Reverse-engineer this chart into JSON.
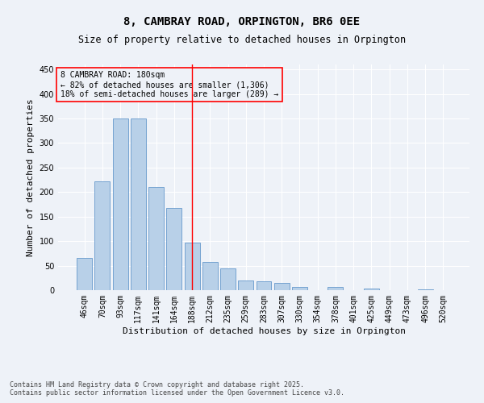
{
  "title": "8, CAMBRAY ROAD, ORPINGTON, BR6 0EE",
  "subtitle": "Size of property relative to detached houses in Orpington",
  "xlabel": "Distribution of detached houses by size in Orpington",
  "ylabel": "Number of detached properties",
  "categories": [
    "46sqm",
    "70sqm",
    "93sqm",
    "117sqm",
    "141sqm",
    "164sqm",
    "188sqm",
    "212sqm",
    "235sqm",
    "259sqm",
    "283sqm",
    "307sqm",
    "330sqm",
    "354sqm",
    "378sqm",
    "401sqm",
    "425sqm",
    "449sqm",
    "473sqm",
    "496sqm",
    "520sqm"
  ],
  "values": [
    65,
    222,
    350,
    350,
    210,
    168,
    97,
    58,
    44,
    20,
    18,
    15,
    7,
    0,
    7,
    0,
    4,
    0,
    0,
    2,
    0
  ],
  "bar_color": "#b8d0e8",
  "bar_edge_color": "#6699cc",
  "vline_x_index": 6,
  "vline_color": "red",
  "ylim": [
    0,
    460
  ],
  "yticks": [
    0,
    50,
    100,
    150,
    200,
    250,
    300,
    350,
    400,
    450
  ],
  "annotation_box_text": "8 CAMBRAY ROAD: 180sqm\n← 82% of detached houses are smaller (1,306)\n18% of semi-detached houses are larger (289) →",
  "footer_line1": "Contains HM Land Registry data © Crown copyright and database right 2025.",
  "footer_line2": "Contains public sector information licensed under the Open Government Licence v3.0.",
  "background_color": "#eef2f8",
  "grid_color": "#ffffff",
  "title_fontsize": 10,
  "subtitle_fontsize": 8.5,
  "axis_label_fontsize": 8,
  "tick_fontsize": 7,
  "annotation_fontsize": 7,
  "footer_fontsize": 6
}
